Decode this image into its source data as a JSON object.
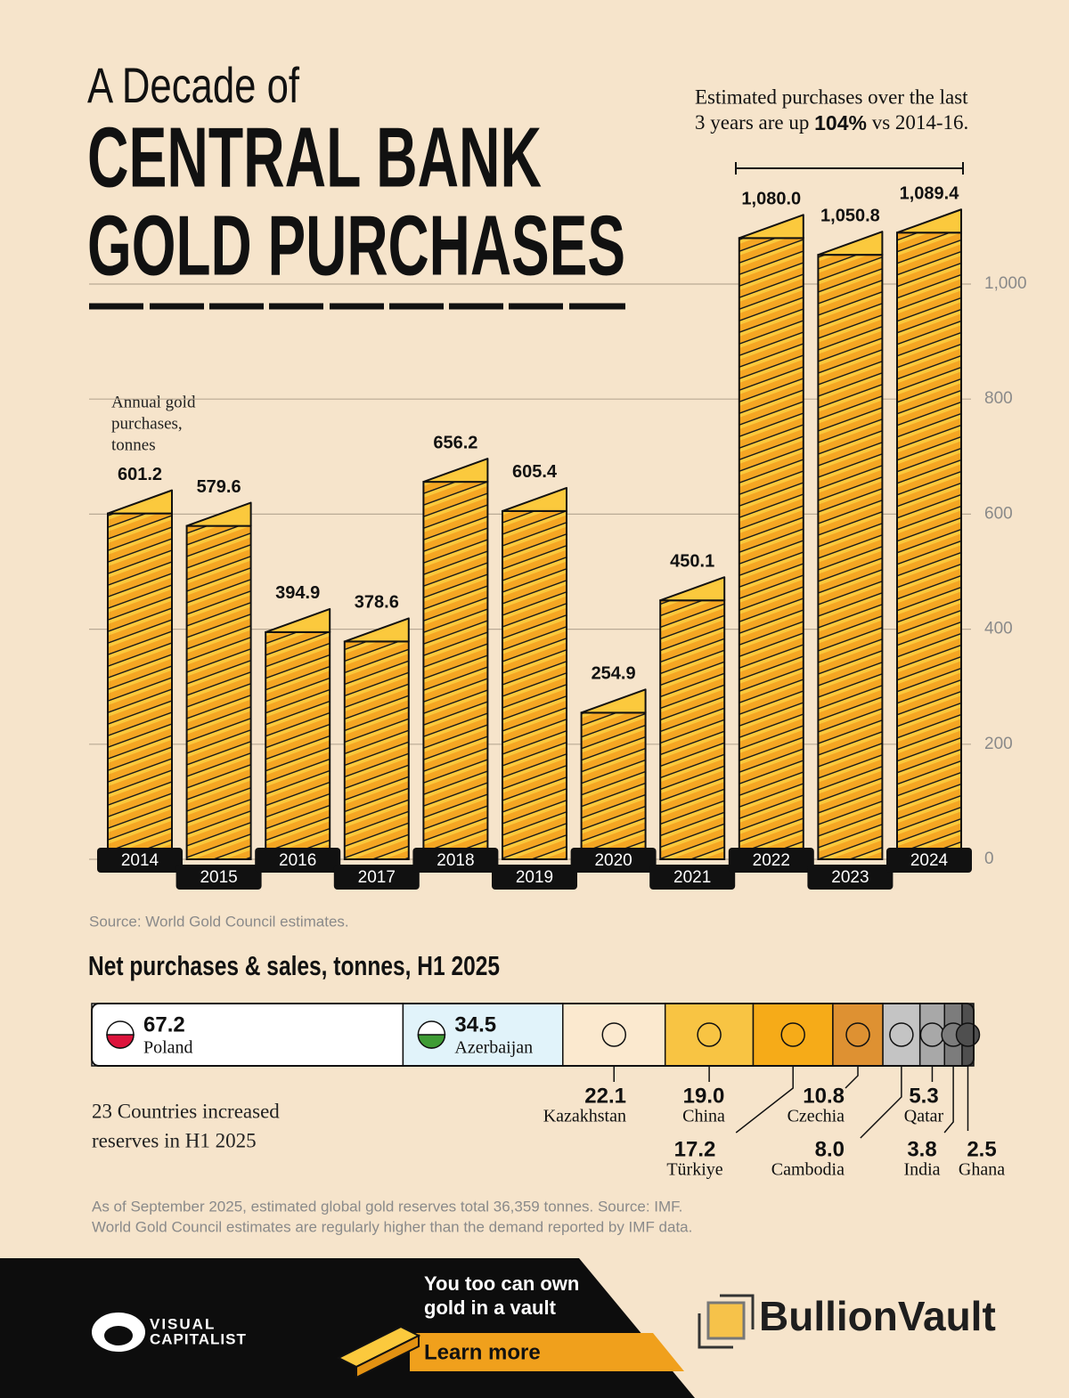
{
  "header": {
    "kicker": "A Decade of",
    "title_lines": [
      "CENTRAL BANK",
      "GOLD PURCHASES"
    ]
  },
  "chart_data": [
    {
      "type": "gold-stack",
      "y_label": [
        "Annual gold",
        "purchases,",
        "tonnes"
      ],
      "annotation": {
        "line1": "Estimated purchases over the last",
        "line2": [
          "3 years are up ",
          "104%",
          " vs 2014-16."
        ]
      },
      "categories": [
        "2014",
        "2015",
        "2016",
        "2017",
        "2018",
        "2019",
        "2020",
        "2021",
        "2022",
        "2023",
        "2024"
      ],
      "values": [
        601.2,
        579.6,
        394.9,
        378.6,
        656.2,
        605.4,
        254.9,
        450.1,
        1080.0,
        1050.8,
        1089.4
      ],
      "value_labels": [
        "601.2",
        "579.6",
        "394.9",
        "378.6",
        "656.2",
        "605.4",
        "254.9",
        "450.1",
        "1,080.0",
        "1,050.8",
        "1,089.4"
      ],
      "color": "#f5a623",
      "ylim": [
        0,
        1100
      ],
      "yticks": [
        0,
        200,
        400,
        600,
        800,
        {
          "value": 1000,
          "label": "1,000"
        }
      ],
      "grid": true,
      "source": "Source: World Gold Council estimates."
    },
    {
      "type": "stacked-hbar",
      "title": "Net purchases & sales, tonnes, H1 2025",
      "series": [
        {
          "name": "Poland",
          "color": "#ffffff",
          "values": [
            67.2
          ],
          "value_labels": [
            "67.2"
          ]
        },
        {
          "name": "Azerbaijan",
          "color": "#e1f3fa",
          "values": [
            34.5
          ],
          "value_labels": [
            "34.5"
          ]
        },
        {
          "name": "Kazakhstan",
          "color": "#fbe9cf",
          "values": [
            22.1
          ],
          "value_labels": [
            "22.1"
          ]
        },
        {
          "name": "China",
          "color": "#f8c443",
          "values": [
            19.0
          ],
          "value_labels": [
            "19.0"
          ]
        },
        {
          "name": "Türkiye",
          "color": "#f6ab18",
          "values": [
            17.2
          ],
          "value_labels": [
            "17.2"
          ]
        },
        {
          "name": "Czechia",
          "color": "#de9132",
          "values": [
            10.8
          ],
          "value_labels": [
            "10.8"
          ]
        },
        {
          "name": "Cambodia",
          "color": "#c4c4c4",
          "values": [
            8.0
          ],
          "value_labels": [
            "8.0"
          ]
        },
        {
          "name": "Qatar",
          "color": "#a8a8a8",
          "values": [
            5.3
          ],
          "value_labels": [
            "5.3"
          ]
        },
        {
          "name": "India",
          "color": "#7c7c7c",
          "values": [
            3.8
          ],
          "value_labels": [
            "3.8"
          ]
        },
        {
          "name": "Ghana",
          "color": "#4f4f4f",
          "values": [
            2.5
          ],
          "value_labels": [
            "2.5"
          ]
        }
      ],
      "note": [
        "23 Countries increased",
        "reserves in H1 2025"
      ],
      "footnote": [
        "As of September 2025, estimated global gold reserves total 36,359 tonnes. Source: IMF.",
        "World Gold Council estimates are regularly higher than the demand reported by IMF data."
      ]
    }
  ],
  "footer": {
    "brand": [
      "VISUAL",
      "CAPITALIST"
    ],
    "cta": [
      "You too can own",
      "gold in a vault"
    ],
    "button": "Learn more",
    "sponsor": "BullionVault"
  }
}
